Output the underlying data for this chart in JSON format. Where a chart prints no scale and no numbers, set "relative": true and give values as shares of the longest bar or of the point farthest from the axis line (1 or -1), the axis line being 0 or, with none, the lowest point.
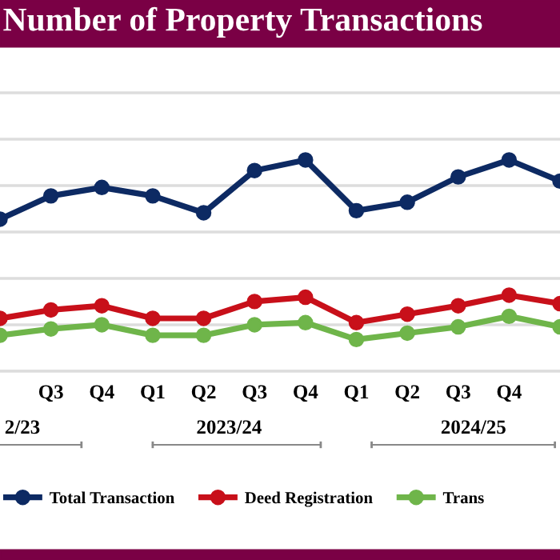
{
  "chart_data": {
    "type": "line",
    "title": "Number of Property Transactions",
    "relative": true,
    "categories": [
      null,
      "Q3",
      "Q4",
      "Q1",
      "Q2",
      "Q3",
      "Q4",
      "Q1",
      "Q2",
      "Q3",
      "Q4",
      null
    ],
    "series": [
      {
        "name": "Total Transaction",
        "color": "#0d2a63",
        "values": [
          0.72,
          0.83,
          0.87,
          0.83,
          0.75,
          0.95,
          1.0,
          0.76,
          0.8,
          0.92,
          1.0,
          0.9
        ]
      },
      {
        "name": "Deed Registration",
        "color": "#c8101a",
        "values": [
          0.25,
          0.29,
          0.31,
          0.25,
          0.25,
          0.33,
          0.35,
          0.23,
          0.27,
          0.31,
          0.36,
          0.32
        ]
      },
      {
        "name": "Trans",
        "color": "#6fb54a",
        "values": [
          0.17,
          0.2,
          0.22,
          0.17,
          0.17,
          0.22,
          0.23,
          0.15,
          0.18,
          0.21,
          0.26,
          0.21
        ]
      }
    ],
    "annotations": [
      "2/23",
      "2023/24",
      "2024/25"
    ],
    "grid": "y",
    "legend": "bottom",
    "marker": "circle",
    "line_style": "solid"
  }
}
